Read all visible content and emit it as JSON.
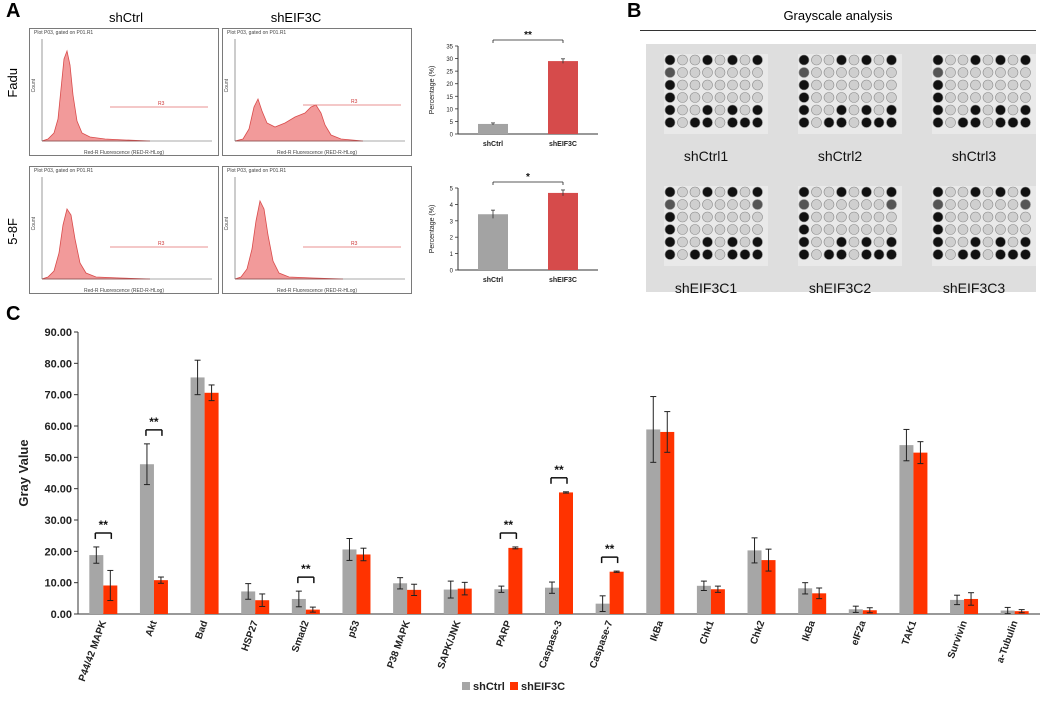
{
  "panel_labels": {
    "a": "A",
    "b": "B",
    "c": "C"
  },
  "panel_a": {
    "column_titles": [
      "shCtrl",
      "shEIF3C"
    ],
    "row_labels": [
      "Fadu",
      "5-8F"
    ],
    "flow_header": "Plot P03, gated on P01.R1",
    "flow_xlabel": "Red-R Fluorescence (RED-R-HLog)",
    "flow_ylabel": "Count",
    "gate_label": "R3",
    "bar_charts": [
      {
        "type": "bar",
        "categories": [
          "shCtrl",
          "shEIF3C"
        ],
        "values": [
          4,
          29
        ],
        "errors": [
          0.4,
          0.9
        ],
        "ylabel": "Percentage (%)",
        "ylim": [
          0,
          35
        ],
        "yticks": [
          "0",
          "5",
          "10",
          "15",
          "20",
          "25",
          "30",
          "35"
        ],
        "significance": "**",
        "colors": [
          "#a3a3a3",
          "#d64b4b"
        ]
      },
      {
        "type": "bar",
        "categories": [
          "shCtrl",
          "shEIF3C"
        ],
        "values": [
          3.4,
          4.7
        ],
        "errors": [
          0.25,
          0.18
        ],
        "ylabel": "Percentage (%)",
        "ylim": [
          0,
          5
        ],
        "yticks": [
          "0",
          "1",
          "2",
          "3",
          "4",
          "5"
        ],
        "significance": "*",
        "colors": [
          "#a3a3a3",
          "#d64b4b"
        ]
      }
    ]
  },
  "panel_b": {
    "title": "Grayscale analysis",
    "blot_labels": [
      "shCtrl1",
      "shCtrl2",
      "shCtrl3",
      "shEIF3C1",
      "shEIF3C2",
      "shEIF3C3"
    ]
  },
  "chart_data": {
    "type": "bar",
    "ylabel": "Gray Value",
    "ylim": [
      0,
      90
    ],
    "yticks": [
      "0.00",
      "10.00",
      "20.00",
      "30.00",
      "40.00",
      "50.00",
      "60.00",
      "70.00",
      "80.00",
      "90.00"
    ],
    "categories": [
      "P44/42 MAPK",
      "Akt",
      "Bad",
      "HSP27",
      "Smad2",
      "p53",
      "P38 MAPK",
      "SAPK/JNK",
      "PARP",
      "Caspase-3",
      "Caspase-7",
      "IkBa",
      "Chk1",
      "Chk2",
      "IkBa",
      "eIF2a",
      "TAK1",
      "Survivin",
      "a-Tubulin"
    ],
    "series": [
      {
        "name": "shCtrl",
        "color": "#a6a6a6",
        "values": [
          18.8,
          47.8,
          75.5,
          7.2,
          4.8,
          20.6,
          9.8,
          7.8,
          7.9,
          8.4,
          3.3,
          58.9,
          9.0,
          20.3,
          8.2,
          1.5,
          53.9,
          4.5,
          1.1
        ],
        "errors": [
          2.6,
          6.5,
          5.5,
          2.5,
          2.5,
          3.5,
          1.8,
          2.7,
          1.0,
          1.8,
          2.5,
          10.5,
          1.5,
          4.0,
          1.8,
          1.0,
          5.0,
          1.5,
          1.0
        ]
      },
      {
        "name": "shEIF3C",
        "color": "#ff3300",
        "values": [
          9.1,
          10.8,
          70.6,
          4.4,
          1.4,
          19.0,
          7.7,
          8.1,
          21.1,
          38.8,
          13.5,
          58.1,
          7.9,
          17.2,
          6.6,
          1.2,
          51.5,
          4.8,
          0.9
        ],
        "errors": [
          4.8,
          1.0,
          2.5,
          2.0,
          0.8,
          2.0,
          1.8,
          2.0,
          0.3,
          0.2,
          0.2,
          6.5,
          1.0,
          3.5,
          1.7,
          0.8,
          3.5,
          2.0,
          0.5
        ]
      }
    ],
    "significance": [
      {
        "index": 0,
        "label": "**"
      },
      {
        "index": 1,
        "label": "**"
      },
      {
        "index": 4,
        "label": "**"
      },
      {
        "index": 8,
        "label": "**"
      },
      {
        "index": 9,
        "label": "**"
      },
      {
        "index": 10,
        "label": "**"
      }
    ],
    "legend": [
      "shCtrl",
      "shEIF3C"
    ],
    "legend_position": "bottom-center"
  }
}
